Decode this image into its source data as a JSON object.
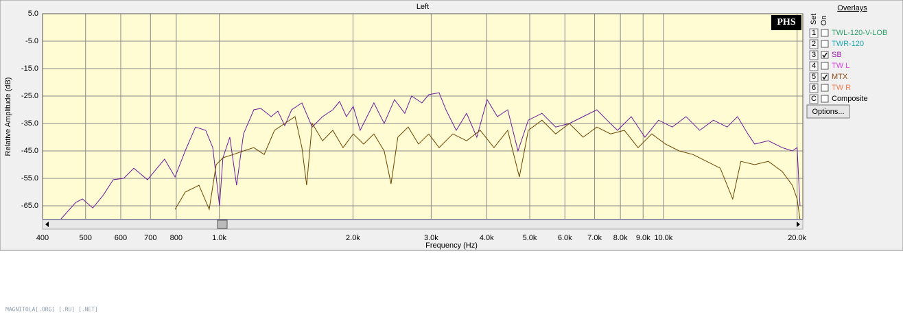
{
  "chart_data": {
    "type": "line",
    "title": "Left",
    "ylabel": "Relative Amplitude (dB)",
    "xlabel": "Frequency (Hz)",
    "xscale": "log",
    "xlim": [
      400,
      20600
    ],
    "ylim": [
      -70,
      5
    ],
    "grid": true,
    "xticks": [
      400,
      500,
      600,
      700,
      800,
      {
        "value": 1000,
        "label": "1.0k"
      },
      {
        "value": 2000,
        "label": "2.0k"
      },
      {
        "value": 3000,
        "label": "3.0k"
      },
      {
        "value": 4000,
        "label": "4.0k"
      },
      {
        "value": 5000,
        "label": "5.0k"
      },
      {
        "value": 6000,
        "label": "6.0k"
      },
      {
        "value": 7000,
        "label": "7.0k"
      },
      {
        "value": 8000,
        "label": "8.0k"
      },
      {
        "value": 9000,
        "label": "9.0k"
      },
      {
        "value": 10000,
        "label": "10.0k"
      },
      {
        "value": 20000,
        "label": "20.0k"
      }
    ],
    "yticks": [
      {
        "value": 5,
        "label": "5.0"
      },
      {
        "value": -5,
        "label": "-5.0"
      },
      {
        "value": -15,
        "label": "-15.0"
      },
      {
        "value": -25,
        "label": "-25.0"
      },
      {
        "value": -35,
        "label": "-35.0"
      },
      {
        "value": -45,
        "label": "-45.0"
      },
      {
        "value": -55,
        "label": "-55.0"
      },
      {
        "value": -65,
        "label": "-65.0"
      }
    ],
    "series": [
      {
        "name": "SB",
        "color": "#6a1b9a",
        "x": [
          439,
          475,
          492,
          519,
          547,
          577,
          609,
          642,
          689,
          753,
          795,
          838,
          884,
          932,
          967,
          1001,
          1019,
          1056,
          1094,
          1134,
          1196,
          1240,
          1308,
          1355,
          1404,
          1455,
          1535,
          1619,
          1708,
          1801,
          1866,
          1933,
          2003,
          2076,
          2229,
          2351,
          2480,
          2616,
          2711,
          2859,
          2963,
          3125,
          3239,
          3416,
          3604,
          3801,
          4009,
          4228,
          4460,
          4705,
          4962,
          5326,
          5720,
          6141,
          6595,
          7081,
          7470,
          7880,
          8461,
          9086,
          9752,
          10471,
          11242,
          12069,
          12960,
          13917,
          14680,
          15490,
          16050,
          17230,
          18510,
          19510,
          20000,
          20300
        ],
        "values": [
          -70,
          -63.8,
          -62.5,
          -65.8,
          -61.3,
          -55.5,
          -55,
          -51.3,
          -55.5,
          -48,
          -54.5,
          -45,
          -36.3,
          -37.5,
          -43.8,
          -65,
          -47.5,
          -40,
          -57.5,
          -38.8,
          -30,
          -29.5,
          -32.5,
          -30.5,
          -35.8,
          -30,
          -27.5,
          -36.3,
          -32.5,
          -30,
          -27,
          -32.5,
          -28.8,
          -37.5,
          -27.5,
          -35,
          -26.3,
          -31.3,
          -25,
          -27.5,
          -24.5,
          -23.8,
          -30,
          -37.5,
          -31.3,
          -40,
          -26.3,
          -32.5,
          -30,
          -45,
          -33.8,
          -31.3,
          -36.3,
          -35,
          -32.5,
          -30,
          -33.8,
          -37.5,
          -32.5,
          -40,
          -33.8,
          -36.3,
          -32.5,
          -37.5,
          -33.8,
          -36.3,
          -32.5,
          -38.8,
          -42.5,
          -41.3,
          -43.8,
          -45,
          -43.8,
          -65
        ]
      },
      {
        "name": "MTX",
        "color": "#6b4400",
        "x": [
          795,
          838,
          900,
          949,
          984,
          1019,
          1075,
          1134,
          1196,
          1262,
          1331,
          1404,
          1481,
          1535,
          1573,
          1619,
          1708,
          1801,
          1899,
          2003,
          2113,
          2229,
          2351,
          2436,
          2524,
          2663,
          2809,
          2963,
          3125,
          3356,
          3604,
          3868,
          4154,
          4460,
          4739,
          4962,
          5326,
          5720,
          6141,
          6595,
          7081,
          7603,
          8166,
          8767,
          9412,
          10107,
          10851,
          11650,
          12510,
          13430,
          14320,
          14940,
          16050,
          17230,
          18510,
          19510,
          20000,
          20300
        ],
        "values": [
          -66.3,
          -60,
          -57.5,
          -66.3,
          -50,
          -47.5,
          -46.3,
          -45,
          -43.8,
          -46.3,
          -37.5,
          -35,
          -32.5,
          -43.8,
          -57.5,
          -35,
          -41.3,
          -37.5,
          -43.8,
          -38.8,
          -42.5,
          -38.8,
          -45,
          -57,
          -40,
          -36.3,
          -42.5,
          -38.8,
          -43.8,
          -38.8,
          -41.3,
          -37.5,
          -43.8,
          -37.5,
          -54.5,
          -37.5,
          -33.8,
          -38.8,
          -35,
          -40,
          -36.3,
          -38.8,
          -37.5,
          -43.8,
          -38.8,
          -42.5,
          -45,
          -46.3,
          -48.8,
          -51.3,
          -62.5,
          -48.8,
          -50,
          -48.8,
          -52.5,
          -57.5,
          -62.5,
          -70
        ]
      }
    ]
  },
  "badge": "PHS",
  "overlays": {
    "title": "Overlays",
    "set_header": "Set",
    "on_header": "On",
    "button": "Options...",
    "rows": [
      {
        "set": "1",
        "on": false,
        "name": "TWL-120-V-LOB",
        "color": "#2e9e6a"
      },
      {
        "set": "2",
        "on": false,
        "name": "TWR-120",
        "color": "#1fa5b0"
      },
      {
        "set": "3",
        "on": true,
        "name": "SB",
        "color": "#a01fb0"
      },
      {
        "set": "4",
        "on": false,
        "name": "TW L",
        "color": "#e040e8"
      },
      {
        "set": "5",
        "on": true,
        "name": "MTX",
        "color": "#8b4a10"
      },
      {
        "set": "6",
        "on": false,
        "name": "TW R",
        "color": "#f07a50"
      },
      {
        "set": "C",
        "on": false,
        "name": "Composite",
        "color": "#000000"
      }
    ]
  },
  "watermark": "MAGNITOLA[.ORG] [.RU] [.NET]"
}
